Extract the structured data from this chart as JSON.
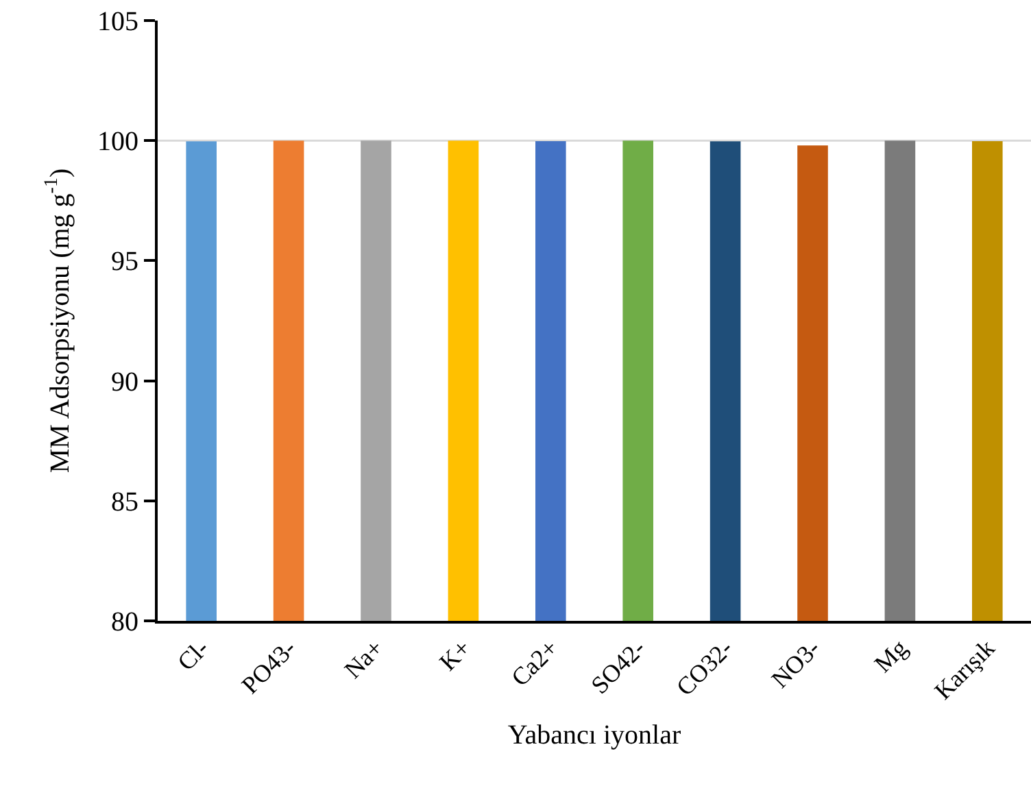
{
  "chart_data": {
    "type": "bar",
    "xlabel": "Yabancı iyonlar",
    "ylabel": "MM Adsorpsiyonu (mg g$^{-1}$)",
    "categories": [
      "Cl-",
      "PO43-",
      "Na+",
      "K+",
      "Ca2+",
      "SO42-",
      "CO32-",
      "NO3-",
      "Mg",
      "Karışık"
    ],
    "values": [
      99.97,
      100,
      100,
      100,
      99.98,
      100,
      99.97,
      99.8,
      100,
      99.98
    ],
    "colors": [
      "#5b9bd5",
      "#ed7d31",
      "#a5a5a5",
      "#ffc000",
      "#4472c4",
      "#70ad47",
      "#1f4e79",
      "#c55a11",
      "#7b7b7b",
      "#bf9000"
    ],
    "ylim": [
      80,
      105
    ],
    "yticks": [
      80,
      85,
      90,
      95,
      100,
      105
    ],
    "grid": false,
    "ref_lines": [
      {
        "axis": "y",
        "value": 100,
        "color": "#d9d9d9"
      }
    ]
  }
}
